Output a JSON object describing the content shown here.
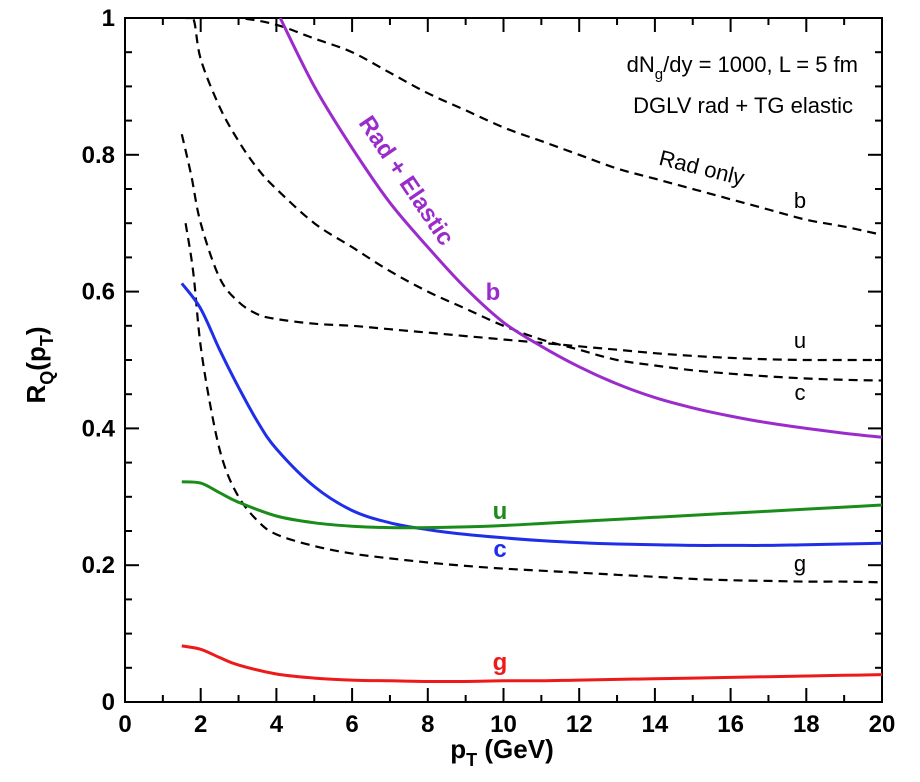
{
  "chart_data": {
    "type": "line",
    "xlabel": {
      "main": "p",
      "sub": "T",
      "rest": " (GeV)"
    },
    "ylabel": {
      "main": "R",
      "sub": "Q",
      "mid": "(p",
      "sub2": "T",
      "end": ")"
    },
    "xlim": [
      0,
      20
    ],
    "ylim": [
      0,
      1
    ],
    "x_ticks": [
      0,
      2,
      4,
      6,
      8,
      10,
      12,
      14,
      16,
      18,
      20
    ],
    "y_ticks": [
      0,
      0.2,
      0.4,
      0.6,
      0.8,
      1
    ],
    "y_tick_labels": [
      "0",
      "0.2",
      "0.4",
      "0.6",
      "0.8",
      "1"
    ],
    "grid": false,
    "annotations": [
      {
        "id": "line1",
        "parts": [
          "dN",
          "g",
          "/dy = 1000, L = 5 fm"
        ]
      },
      {
        "id": "line2",
        "text": "DGLV rad + TG elastic"
      },
      {
        "id": "rad_only",
        "text": "Rad only"
      },
      {
        "id": "rad_elastic",
        "text": "Rad + Elastic",
        "color": "#9a2ccc"
      }
    ],
    "series": [
      {
        "name": "b",
        "group": "rad_only",
        "style": "dashed",
        "color": "#000000",
        "x": [
          1.6,
          2,
          3,
          4,
          5,
          6,
          7,
          8,
          9,
          10,
          11,
          12,
          13,
          14,
          15,
          16,
          17,
          18,
          19,
          20
        ],
        "y": [
          1.0,
          1.0,
          1.0,
          0.99,
          0.97,
          0.95,
          0.92,
          0.89,
          0.865,
          0.84,
          0.82,
          0.8,
          0.78,
          0.765,
          0.75,
          0.735,
          0.72,
          0.705,
          0.695,
          0.683
        ]
      },
      {
        "name": "c",
        "group": "rad_only",
        "style": "dashed",
        "color": "#000000",
        "x": [
          1.5,
          1.8,
          2,
          2.5,
          3,
          3.5,
          4,
          5,
          6,
          7,
          8,
          9,
          10,
          11,
          12,
          13,
          14,
          15,
          16,
          17,
          18,
          19,
          20
        ],
        "y": [
          1.0,
          1.0,
          0.94,
          0.87,
          0.82,
          0.78,
          0.75,
          0.7,
          0.665,
          0.63,
          0.6,
          0.575,
          0.55,
          0.53,
          0.515,
          0.5,
          0.492,
          0.485,
          0.48,
          0.476,
          0.473,
          0.471,
          0.47
        ]
      },
      {
        "name": "u",
        "group": "rad_only",
        "style": "dashed",
        "color": "#000000",
        "x": [
          1.5,
          1.75,
          2,
          2.5,
          3,
          3.5,
          4,
          5,
          6,
          7,
          8,
          9,
          10,
          11,
          12,
          13,
          14,
          15,
          16,
          17,
          18,
          19,
          20
        ],
        "y": [
          0.83,
          0.77,
          0.7,
          0.62,
          0.585,
          0.567,
          0.56,
          0.553,
          0.55,
          0.545,
          0.54,
          0.535,
          0.53,
          0.525,
          0.52,
          0.515,
          0.51,
          0.506,
          0.503,
          0.501,
          0.5,
          0.5,
          0.5
        ]
      },
      {
        "name": "g",
        "group": "rad_only",
        "style": "dashed",
        "color": "#000000",
        "x": [
          1.6,
          1.8,
          2,
          2.3,
          2.6,
          3,
          3.5,
          4,
          5,
          6,
          7,
          8,
          9,
          10,
          11,
          12,
          13,
          14,
          15,
          16,
          17,
          18,
          19,
          20
        ],
        "y": [
          0.7,
          0.63,
          0.52,
          0.42,
          0.35,
          0.3,
          0.265,
          0.245,
          0.228,
          0.217,
          0.21,
          0.204,
          0.199,
          0.195,
          0.192,
          0.189,
          0.186,
          0.183,
          0.18,
          0.178,
          0.177,
          0.176,
          0.176,
          0.175
        ]
      },
      {
        "name": "b",
        "group": "rad_elastic",
        "style": "solid",
        "color": "#9a2ccc",
        "x": [
          4.1,
          5,
          6,
          7,
          8,
          9,
          10,
          11,
          12,
          13,
          14,
          15,
          16,
          17,
          18,
          19,
          20
        ],
        "y": [
          1.0,
          0.9,
          0.81,
          0.73,
          0.665,
          0.605,
          0.555,
          0.52,
          0.49,
          0.465,
          0.445,
          0.43,
          0.418,
          0.408,
          0.4,
          0.393,
          0.387
        ]
      },
      {
        "name": "c",
        "group": "rad_elastic",
        "style": "solid",
        "color": "#1f2fe8",
        "x": [
          1.5,
          2,
          2.5,
          3,
          3.5,
          4,
          5,
          6,
          7,
          8,
          9,
          10,
          11,
          12,
          13,
          14,
          15,
          16,
          17,
          18,
          19,
          20
        ],
        "y": [
          0.612,
          0.575,
          0.515,
          0.46,
          0.41,
          0.37,
          0.315,
          0.28,
          0.262,
          0.252,
          0.245,
          0.24,
          0.236,
          0.233,
          0.231,
          0.23,
          0.229,
          0.229,
          0.229,
          0.23,
          0.231,
          0.232
        ]
      },
      {
        "name": "u",
        "group": "rad_elastic",
        "style": "solid",
        "color": "#1a8c1a",
        "x": [
          1.5,
          2,
          2.5,
          3,
          4,
          5,
          6,
          7,
          8,
          9,
          10,
          11,
          12,
          13,
          14,
          15,
          16,
          17,
          18,
          19,
          20
        ],
        "y": [
          0.322,
          0.32,
          0.306,
          0.292,
          0.272,
          0.262,
          0.257,
          0.255,
          0.255,
          0.256,
          0.258,
          0.261,
          0.264,
          0.267,
          0.27,
          0.273,
          0.276,
          0.279,
          0.282,
          0.285,
          0.288
        ]
      },
      {
        "name": "g",
        "group": "rad_elastic",
        "style": "solid",
        "color": "#ee1a1a",
        "x": [
          1.5,
          2,
          2.5,
          3,
          4,
          5,
          6,
          7,
          8,
          9,
          10,
          11,
          12,
          13,
          14,
          15,
          16,
          17,
          18,
          19,
          20
        ],
        "y": [
          0.082,
          0.077,
          0.065,
          0.054,
          0.041,
          0.035,
          0.032,
          0.031,
          0.03,
          0.03,
          0.031,
          0.031,
          0.032,
          0.033,
          0.034,
          0.035,
          0.036,
          0.037,
          0.038,
          0.039,
          0.04
        ]
      }
    ]
  }
}
